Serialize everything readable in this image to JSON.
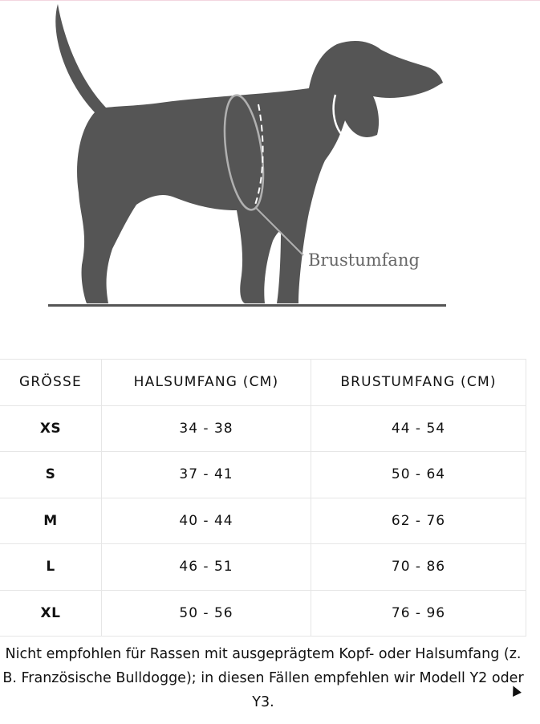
{
  "illustration": {
    "label": "Brustumfang",
    "dog_color": "#555555",
    "ring_color": "#b0b0b0"
  },
  "size_table": {
    "headers": [
      "GRÖSSE",
      "HALSUMFANG (CM)",
      "BRUSTUMFANG (CM)"
    ],
    "rows": [
      {
        "size": "XS",
        "neck": "34 - 38",
        "chest": "44 - 54"
      },
      {
        "size": "S",
        "neck": "37 - 41",
        "chest": "50 - 64"
      },
      {
        "size": "M",
        "neck": "40 - 44",
        "chest": "62 - 76"
      },
      {
        "size": "L",
        "neck": "46 - 51",
        "chest": "70 - 86"
      },
      {
        "size": "XL",
        "neck": "50 - 56",
        "chest": "76 - 96"
      }
    ]
  },
  "note": "Nicht empfohlen für Rassen mit ausgeprägtem Kopf- oder Halsumfang (z. B. Französische Bulldogge); in diesen Fällen empfehlen wir Modell Y2 oder Y3."
}
